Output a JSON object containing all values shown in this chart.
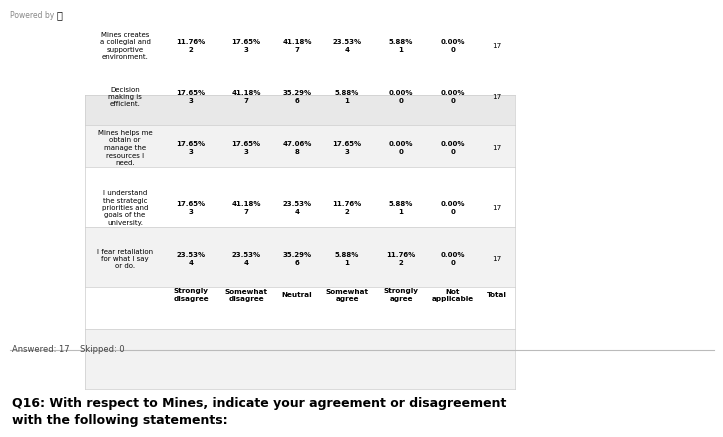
{
  "title": "Q16: With respect to Mines, indicate your agreement or disagreement\nwith the following statements:",
  "answered": "Answered: 17    Skipped: 0",
  "columns": [
    "Strongly\ndisagree",
    "Somewhat\ndisagree",
    "Neutral",
    "Somewhat\nagree",
    "Strongly\nagree",
    "Not\napplicable",
    "Total"
  ],
  "rows": [
    {
      "label": "I fear retaliation\nfor what I say\nor do.",
      "values": [
        "23.53%\n4",
        "23.53%\n4",
        "35.29%\n6",
        "5.88%\n1",
        "11.76%\n2",
        "0.00%\n0",
        "17"
      ]
    },
    {
      "label": "I understand\nthe strategic\npriorities and\ngoals of the\nuniversity.",
      "values": [
        "17.65%\n3",
        "41.18%\n7",
        "23.53%\n4",
        "11.76%\n2",
        "5.88%\n1",
        "0.00%\n0",
        "17"
      ]
    },
    {
      "label": "Mines helps me\nobtain or\nmanage the\nresources I\nneed.",
      "values": [
        "17.65%\n3",
        "17.65%\n3",
        "47.06%\n8",
        "17.65%\n3",
        "0.00%\n0",
        "0.00%\n0",
        "17"
      ]
    },
    {
      "label": "Decision\nmaking is\nefficient.",
      "values": [
        "17.65%\n3",
        "41.18%\n7",
        "35.29%\n6",
        "5.88%\n1",
        "0.00%\n0",
        "0.00%\n0",
        "17"
      ]
    },
    {
      "label": "Mines creates\na collegial and\nsupportive\nenvironment.",
      "values": [
        "11.76%\n2",
        "17.65%\n3",
        "41.18%\n7",
        "23.53%\n4",
        "5.88%\n1",
        "0.00%\n0",
        "17"
      ]
    }
  ],
  "header_bg": "#e8e8e8",
  "table_border_color": "#cccccc",
  "title_color": "#000000",
  "header_text_color": "#000000",
  "cell_text_color": "#000000",
  "bg_color": "#ffffff",
  "powered_by": "Powered by"
}
